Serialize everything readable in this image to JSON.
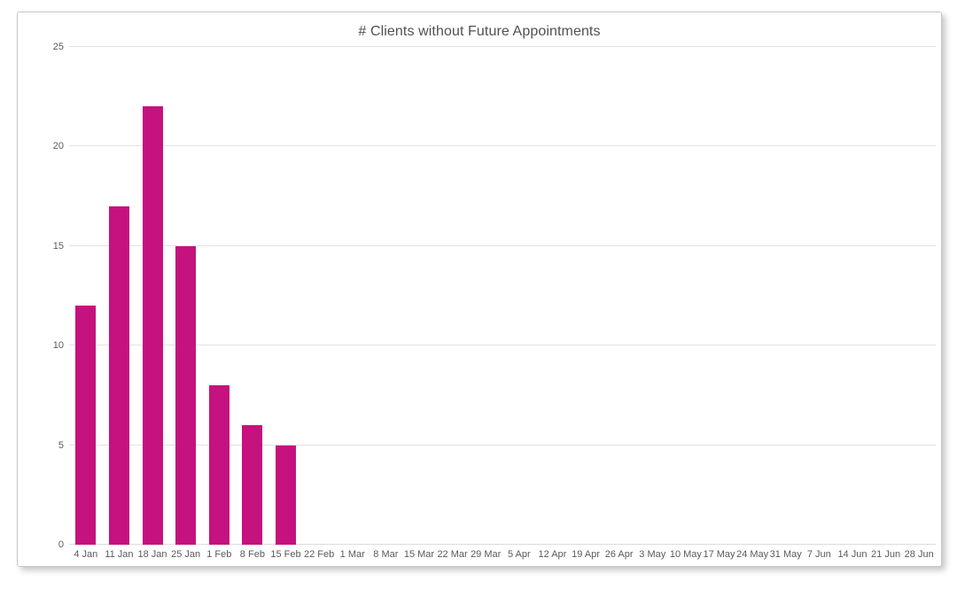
{
  "chart_data": {
    "type": "bar",
    "title": "# Clients without Future Appointments",
    "categories": [
      "4 Jan",
      "11 Jan",
      "18 Jan",
      "25 Jan",
      "1 Feb",
      "8 Feb",
      "15 Feb",
      "22 Feb",
      "1 Mar",
      "8 Mar",
      "15 Mar",
      "22 Mar",
      "29 Mar",
      "5 Apr",
      "12 Apr",
      "19 Apr",
      "26 Apr",
      "3 May",
      "10 May",
      "17 May",
      "24 May",
      "31 May",
      "7 Jun",
      "14 Jun",
      "21 Jun",
      "28 Jun"
    ],
    "values": [
      12,
      17,
      22,
      15,
      8,
      6,
      5,
      0,
      0,
      0,
      0,
      0,
      0,
      0,
      0,
      0,
      0,
      0,
      0,
      0,
      0,
      0,
      0,
      0,
      0,
      0
    ],
    "xlabel": "",
    "ylabel": "",
    "ylim": [
      0,
      25
    ],
    "yticks": [
      0,
      5,
      10,
      15,
      20,
      25
    ],
    "grid": true,
    "legend": false
  },
  "colors": {
    "bar": "#C5127E",
    "gridline": "#E2E2E2",
    "baseline": "#DCDCDC",
    "axis_text": "#5A5A5A",
    "title_text": "#515151",
    "card_border": "#C7C7C7",
    "card_bg": "#FFFFFF"
  }
}
